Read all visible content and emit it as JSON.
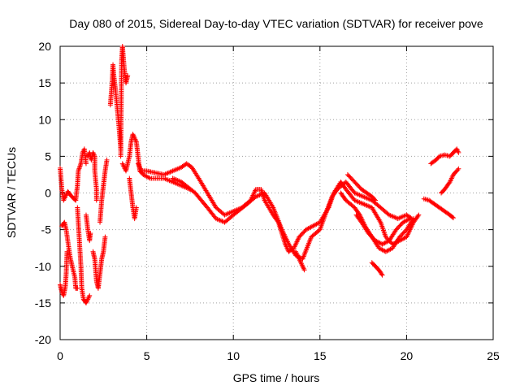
{
  "chart_data": {
    "type": "scatter",
    "title": "Day 080 of 2015, Sidereal Day-to-day VTEC variation (SDTVAR) for receiver pove",
    "xlabel": "GPS time / hours",
    "ylabel": "SDTVAR / TECUs",
    "xlim": [
      0,
      25
    ],
    "ylim": [
      -20,
      20
    ],
    "xticks": [
      "0",
      "5",
      "10",
      "15",
      "20",
      "25"
    ],
    "yticks": [
      "-20",
      "-15",
      "-10",
      "-5",
      "0",
      "5",
      "10",
      "15",
      "20"
    ],
    "grid": true,
    "marker": "+",
    "series": [
      {
        "name": "SDTVAR",
        "color": "#ff0000",
        "segments": [
          [
            [
              0.0,
              -12.5
            ],
            [
              0.1,
              -13.5
            ],
            [
              0.2,
              -14
            ],
            [
              0.3,
              -12.8
            ],
            [
              0.35,
              -11
            ],
            [
              0.4,
              -8
            ]
          ],
          [
            [
              0.0,
              3.4
            ],
            [
              0.1,
              0.5
            ],
            [
              0.2,
              -1
            ],
            [
              0.3,
              -0.5
            ],
            [
              0.45,
              0.2
            ],
            [
              0.6,
              -0.3
            ],
            [
              0.8,
              -0.8
            ],
            [
              0.9,
              -1
            ]
          ],
          [
            [
              0.1,
              -4.5
            ],
            [
              0.25,
              -4
            ],
            [
              0.35,
              -5
            ],
            [
              0.5,
              -7.5
            ],
            [
              0.6,
              -9
            ],
            [
              0.7,
              -10
            ],
            [
              0.85,
              -11.5
            ],
            [
              0.9,
              -13
            ],
            [
              1.0,
              -13
            ]
          ],
          [
            [
              0.9,
              -1
            ],
            [
              1.0,
              1
            ],
            [
              1.05,
              3
            ],
            [
              1.2,
              4
            ],
            [
              1.3,
              5.5
            ],
            [
              1.4,
              6
            ],
            [
              1.5,
              4
            ]
          ],
          [
            [
              1.0,
              -2
            ],
            [
              1.1,
              -6
            ],
            [
              1.2,
              -10
            ],
            [
              1.25,
              -13
            ],
            [
              1.35,
              -14.5
            ],
            [
              1.5,
              -15
            ],
            [
              1.7,
              -14
            ]
          ],
          [
            [
              1.5,
              -3
            ],
            [
              1.6,
              -5
            ],
            [
              1.7,
              -6.5
            ],
            [
              1.75,
              -5.5
            ]
          ],
          [
            [
              1.6,
              5
            ],
            [
              1.7,
              5.5
            ],
            [
              1.8,
              4.5
            ],
            [
              1.9,
              5.5
            ],
            [
              2.0,
              5
            ],
            [
              2.0,
              3
            ],
            [
              2.1,
              0.5
            ],
            [
              2.1,
              -1
            ]
          ],
          [
            [
              1.9,
              -8
            ],
            [
              2.0,
              -9
            ],
            [
              2.1,
              -12
            ],
            [
              2.2,
              -13
            ],
            [
              2.3,
              -11
            ],
            [
              2.4,
              -9
            ],
            [
              2.5,
              -8
            ],
            [
              2.6,
              -6
            ]
          ],
          [
            [
              2.3,
              -4
            ],
            [
              2.4,
              -1
            ],
            [
              2.5,
              1
            ],
            [
              2.6,
              3
            ],
            [
              2.7,
              4.5
            ]
          ],
          [
            [
              2.9,
              12
            ],
            [
              3.0,
              15
            ],
            [
              3.05,
              17.5
            ],
            [
              3.1,
              16
            ],
            [
              3.2,
              14
            ],
            [
              3.3,
              11.5
            ],
            [
              3.4,
              9
            ],
            [
              3.5,
              6
            ]
          ],
          [
            [
              3.5,
              5
            ],
            [
              3.55,
              18
            ],
            [
              3.6,
              20
            ],
            [
              3.7,
              17
            ],
            [
              3.8,
              15
            ],
            [
              3.9,
              16
            ]
          ],
          [
            [
              3.6,
              4
            ],
            [
              3.8,
              3
            ],
            [
              4.0,
              5
            ],
            [
              4.1,
              7
            ],
            [
              4.2,
              8
            ],
            [
              4.4,
              7
            ],
            [
              4.5,
              5
            ],
            [
              4.6,
              3
            ],
            [
              4.8,
              2.5
            ],
            [
              5.2,
              2
            ],
            [
              6.0,
              2
            ],
            [
              7.0,
              1
            ],
            [
              7.5,
              0.5
            ]
          ],
          [
            [
              4.0,
              2
            ],
            [
              4.1,
              0
            ],
            [
              4.2,
              -2
            ],
            [
              4.3,
              -3.5
            ],
            [
              4.4,
              -2
            ]
          ],
          [
            [
              4.5,
              4
            ],
            [
              4.7,
              3
            ],
            [
              5.0,
              3
            ],
            [
              6.0,
              2.5
            ],
            [
              6.5,
              3
            ],
            [
              7.0,
              3.5
            ],
            [
              7.3,
              4
            ],
            [
              7.6,
              3.5
            ],
            [
              8.0,
              2
            ],
            [
              8.5,
              0
            ],
            [
              9.0,
              -2
            ],
            [
              9.5,
              -3
            ],
            [
              10.0,
              -2.5
            ],
            [
              10.5,
              -2
            ],
            [
              11.0,
              -1
            ],
            [
              11.3,
              0.5
            ],
            [
              11.6,
              0.5
            ],
            [
              11.8,
              -1
            ],
            [
              12.3,
              -3
            ],
            [
              12.6,
              -4
            ],
            [
              12.8,
              -5.5
            ],
            [
              13.0,
              -7
            ],
            [
              13.2,
              -8
            ],
            [
              13.5,
              -7.5
            ],
            [
              13.8,
              -6
            ],
            [
              14.2,
              -5
            ],
            [
              14.6,
              -4.5
            ],
            [
              15.0,
              -4
            ],
            [
              15.5,
              -2
            ],
            [
              15.8,
              0
            ],
            [
              16.2,
              1.5
            ],
            [
              16.5,
              0.5
            ],
            [
              17.0,
              -1
            ],
            [
              17.5,
              -1.5
            ],
            [
              18.0,
              -2
            ],
            [
              18.5,
              -4
            ],
            [
              18.8,
              -6
            ],
            [
              19.2,
              -7
            ],
            [
              19.6,
              -6.5
            ],
            [
              20.0,
              -6
            ],
            [
              20.4,
              -4
            ],
            [
              20.7,
              -3
            ]
          ],
          [
            [
              6.5,
              2
            ],
            [
              7.0,
              1.5
            ],
            [
              7.8,
              0
            ],
            [
              8.5,
              -2
            ],
            [
              9.0,
              -3.5
            ],
            [
              9.5,
              -4
            ],
            [
              10.0,
              -3
            ],
            [
              10.8,
              -1.5
            ],
            [
              11.3,
              -0.5
            ],
            [
              11.8,
              0
            ],
            [
              12.3,
              -2
            ],
            [
              12.8,
              -5
            ],
            [
              13.2,
              -7
            ],
            [
              13.6,
              -8.5
            ],
            [
              14.0,
              -9
            ],
            [
              14.5,
              -6
            ],
            [
              15.0,
              -5
            ],
            [
              15.3,
              -3
            ],
            [
              15.7,
              -0.5
            ],
            [
              16.0,
              0.5
            ],
            [
              16.5,
              1.5
            ],
            [
              17.0,
              0
            ],
            [
              17.5,
              -0.5
            ],
            [
              18.0,
              -1
            ],
            [
              18.5,
              -2
            ],
            [
              19.0,
              -3
            ],
            [
              19.5,
              -3.5
            ],
            [
              20.0,
              -3
            ],
            [
              20.3,
              -3.5
            ]
          ],
          [
            [
              13.6,
              -8
            ],
            [
              13.8,
              -9
            ],
            [
              14.0,
              -10
            ],
            [
              14.1,
              -10.5
            ]
          ],
          [
            [
              16.2,
              0
            ],
            [
              16.5,
              -1
            ],
            [
              17.0,
              -2
            ],
            [
              17.3,
              -3
            ],
            [
              17.6,
              -4.5
            ],
            [
              18.0,
              -6
            ],
            [
              18.4,
              -7.5
            ],
            [
              18.8,
              -8
            ],
            [
              19.2,
              -7.5
            ],
            [
              19.6,
              -6
            ],
            [
              20.0,
              -5
            ],
            [
              20.4,
              -3.5
            ]
          ],
          [
            [
              17.1,
              -3
            ],
            [
              17.4,
              -4
            ],
            [
              17.8,
              -5.5
            ],
            [
              18.2,
              -6.5
            ],
            [
              18.6,
              -7
            ],
            [
              19.0,
              -6.5
            ],
            [
              19.4,
              -5
            ],
            [
              19.8,
              -4
            ],
            [
              20.2,
              -3.5
            ]
          ],
          [
            [
              16.6,
              2.5
            ],
            [
              17.0,
              1.5
            ],
            [
              17.4,
              0.5
            ],
            [
              17.7,
              0
            ],
            [
              18.0,
              -0.5
            ],
            [
              18.2,
              -1
            ]
          ],
          [
            [
              18.0,
              -9.5
            ],
            [
              18.2,
              -10
            ],
            [
              18.4,
              -10.5
            ],
            [
              18.6,
              -11.2
            ]
          ],
          [
            [
              21.0,
              -0.8
            ],
            [
              21.3,
              -1
            ],
            [
              21.6,
              -1.5
            ],
            [
              21.9,
              -2
            ],
            [
              22.2,
              -2.5
            ],
            [
              22.5,
              -3
            ],
            [
              22.7,
              -3.4
            ]
          ],
          [
            [
              21.4,
              4
            ],
            [
              21.7,
              4.5
            ],
            [
              21.9,
              5
            ],
            [
              22.2,
              5.2
            ],
            [
              22.5,
              5
            ],
            [
              22.7,
              5.5
            ],
            [
              22.9,
              6
            ],
            [
              23.0,
              5.5
            ]
          ],
          [
            [
              22.0,
              0
            ],
            [
              22.2,
              0.5
            ],
            [
              22.5,
              1.5
            ],
            [
              22.7,
              2.5
            ],
            [
              22.9,
              3
            ],
            [
              23.0,
              3.3
            ]
          ]
        ]
      }
    ]
  }
}
